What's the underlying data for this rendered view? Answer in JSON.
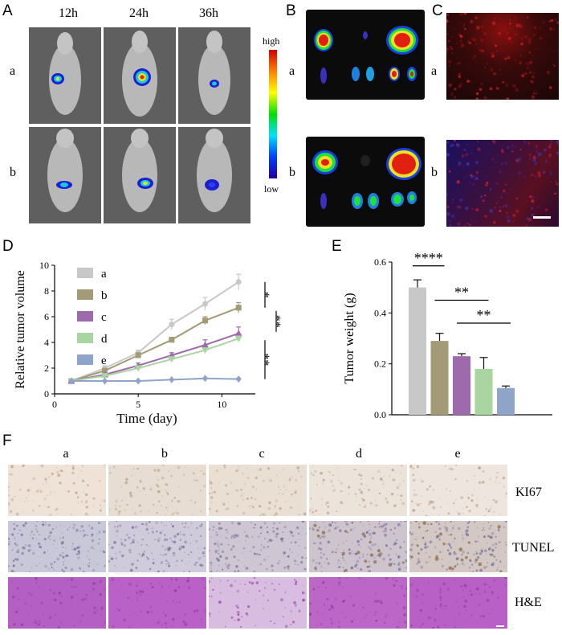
{
  "panels": {
    "A": "A",
    "B": "B",
    "C": "C",
    "D": "D",
    "E": "E",
    "F": "F"
  },
  "panel_a": {
    "columns": [
      "12h",
      "24h",
      "36h"
    ],
    "rows": [
      "a",
      "b"
    ],
    "colorbar": {
      "high": "high",
      "low": "low"
    }
  },
  "panel_b": {
    "rows": [
      "a",
      "b"
    ]
  },
  "panel_c": {
    "rows": [
      "a",
      "b"
    ]
  },
  "panel_f": {
    "columns": [
      "a",
      "b",
      "c",
      "d",
      "e"
    ],
    "rows": [
      "KI67",
      "TUNEL",
      "H&E"
    ]
  },
  "colors": {
    "a": "#c8c8c8",
    "b": "#a39a78",
    "c": "#9e6aab",
    "d": "#a9d6a0",
    "e": "#8ea4c8"
  },
  "chart_data": [
    {
      "type": "line",
      "xlabel": "Time (day)",
      "ylabel": "Relative tumor volume",
      "xlim": [
        0,
        12
      ],
      "ylim": [
        0,
        10
      ],
      "xticks": [
        0,
        5,
        10
      ],
      "yticks": [
        0,
        2,
        4,
        6,
        8,
        10
      ],
      "x": [
        1,
        3,
        5,
        7,
        9,
        11
      ],
      "series": [
        {
          "name": "a",
          "values": [
            1.0,
            2.0,
            3.2,
            5.4,
            7.0,
            8.7
          ],
          "err": [
            0.1,
            0.2,
            0.2,
            0.4,
            0.5,
            0.6
          ],
          "marker": "circle"
        },
        {
          "name": "b",
          "values": [
            1.0,
            1.8,
            3.0,
            4.2,
            5.7,
            6.7
          ],
          "err": [
            0.1,
            0.1,
            0.2,
            0.2,
            0.3,
            0.4
          ],
          "marker": "square"
        },
        {
          "name": "c",
          "values": [
            1.0,
            1.5,
            2.2,
            3.0,
            3.8,
            4.7
          ],
          "err": [
            0.1,
            0.1,
            0.2,
            0.2,
            0.4,
            0.5
          ],
          "marker": "triangle"
        },
        {
          "name": "d",
          "values": [
            1.0,
            1.4,
            2.0,
            2.7,
            3.4,
            4.3
          ],
          "err": [
            0.1,
            0.1,
            0.1,
            0.1,
            0.1,
            0.2
          ],
          "marker": "triangle-down"
        },
        {
          "name": "e",
          "values": [
            1.0,
            1.0,
            1.0,
            1.1,
            1.2,
            1.15
          ],
          "err": [
            0.05,
            0.05,
            0.05,
            0.05,
            0.05,
            0.05
          ],
          "marker": "diamond"
        }
      ],
      "significance": [
        {
          "label": "*",
          "between": [
            "a",
            "b"
          ]
        },
        {
          "label": "**",
          "between": [
            "b",
            "c"
          ]
        },
        {
          "label": "**",
          "between": [
            "d",
            "e"
          ]
        }
      ],
      "legend": "top-left"
    },
    {
      "type": "bar",
      "ylabel": "Tumor weight (g)",
      "categories": [
        "a",
        "b",
        "c",
        "d",
        "e"
      ],
      "values": [
        0.5,
        0.29,
        0.23,
        0.18,
        0.105
      ],
      "err": [
        0.03,
        0.03,
        0.01,
        0.045,
        0.008
      ],
      "ylim": [
        0,
        0.6
      ],
      "yticks": [
        0.0,
        0.2,
        0.4,
        0.6
      ],
      "significance": [
        {
          "label": "****",
          "from": 0,
          "to": 1
        },
        {
          "label": "**",
          "from": 1,
          "to": 3
        },
        {
          "label": "**",
          "from": 2,
          "to": 4
        }
      ]
    }
  ]
}
